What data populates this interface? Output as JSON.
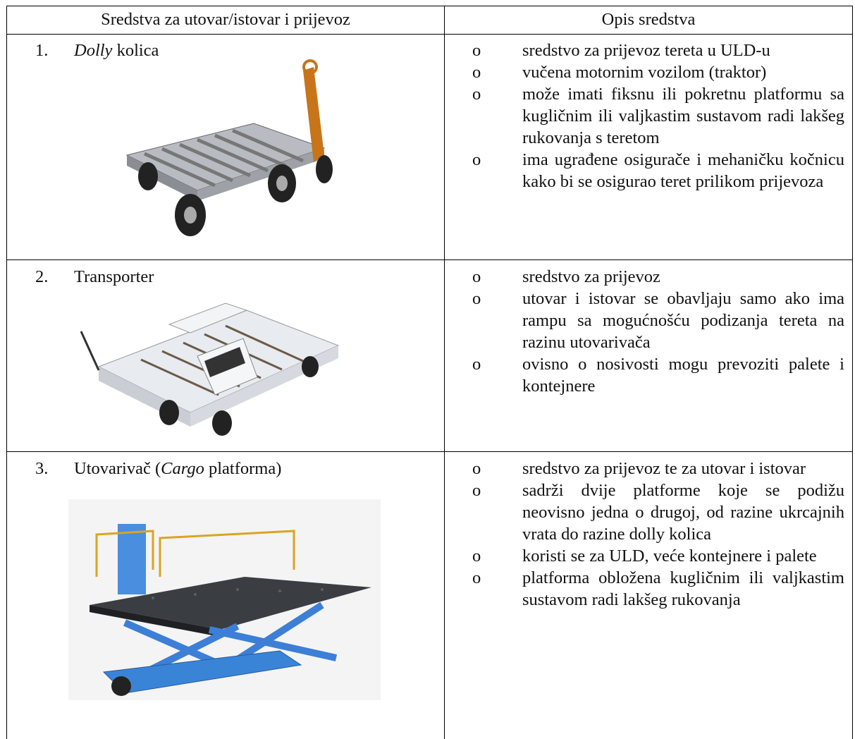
{
  "table": {
    "header": [
      "Sredstva za utovar/istovar i prijevoz",
      "Opis sredstva"
    ],
    "rows": [
      {
        "number": "1.",
        "label": [
          {
            "text": "Dolly",
            "italic": true
          },
          {
            "text": " kolica",
            "italic": false
          }
        ],
        "items": [
          "sredstvo za prijevoz tereta u ULD-u",
          "vučena motornim vozilom (traktor)",
          "može imati fiksnu ili pokretnu platformu sa kugličnim ili valjkastim sustavom radi lakšeg rukovanja s teretom",
          "ima ugrađene osigurače i mehaničku kočnicu kako bi se osigurao teret prilikom prijevoza"
        ]
      },
      {
        "number": "2.",
        "label": [
          {
            "text": "Transporter",
            "italic": false
          }
        ],
        "items": [
          "sredstvo za prijevoz",
          "utovar i istovar se obavljaju samo ako ima rampu sa mogućnošću podizanja tereta na razinu utovarivača",
          "ovisno o nosivosti mogu prevoziti palete i kontejnere"
        ]
      },
      {
        "number": "3.",
        "label": [
          {
            "text": "Utovarivač (",
            "italic": false
          },
          {
            "text": "Cargo",
            "italic": true
          },
          {
            "text": " platforma)",
            "italic": false
          }
        ],
        "items": [
          "sredstvo za prijevoz te za utovar i istovar",
          "sadrži dvije platforme koje se podižu neovisno jedna o drugoj, od razine ukrcajnih vrata do razine dolly kolica",
          "koristi se za ULD, veće kontejnere i palete",
          "platforma obložena kugličnim ili valjkastim sustavom radi lakšeg rukovanja"
        ]
      }
    ]
  }
}
